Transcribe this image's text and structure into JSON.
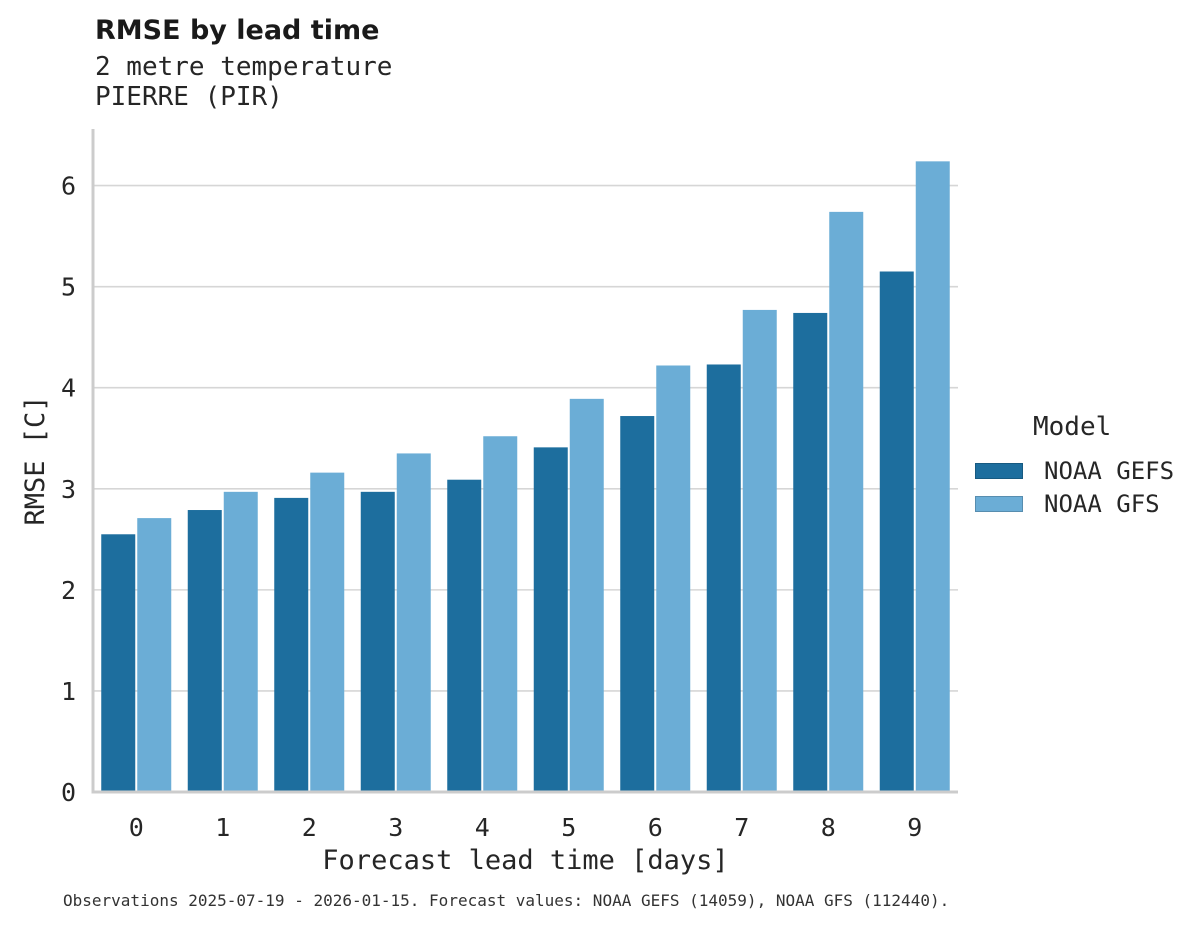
{
  "header": {
    "title": "RMSE by lead time",
    "subtitle_line1": "2 metre temperature",
    "subtitle_line2": "PIERRE (PIR)"
  },
  "caption": "Observations 2025-07-19 - 2026-01-15. Forecast values: NOAA GEFS (14059), NOAA GFS (112440).",
  "colors": {
    "gefs_blue": "#1d6e9e",
    "gfs_blue": "#6badd6",
    "gridline": "#d6d6d6",
    "spine": "#cccccc",
    "text": "#262626"
  },
  "chart_data": {
    "type": "bar",
    "title": "RMSE by lead time",
    "subtitle": [
      "2 metre temperature",
      "PIERRE (PIR)"
    ],
    "categories": [
      "0",
      "1",
      "2",
      "3",
      "4",
      "5",
      "6",
      "7",
      "8",
      "9"
    ],
    "series": [
      {
        "name": "NOAA GEFS",
        "color": "#1d6e9e",
        "values": [
          2.55,
          2.79,
          2.91,
          2.97,
          3.09,
          3.41,
          3.72,
          4.23,
          4.74,
          5.15
        ]
      },
      {
        "name": "NOAA GFS",
        "color": "#6badd6",
        "values": [
          2.71,
          2.97,
          3.16,
          3.35,
          3.52,
          3.89,
          4.22,
          4.77,
          5.74,
          6.24
        ]
      }
    ],
    "xlabel": "Forecast lead time [days]",
    "ylabel": "RMSE [C]",
    "ylim": [
      0,
      6.56
    ],
    "yticks": [
      0,
      1,
      2,
      3,
      4,
      5,
      6
    ],
    "grid": true,
    "legend_title": "Model",
    "legend_position": "right",
    "caption": "Observations 2025-07-19 - 2026-01-15. Forecast values: NOAA GEFS (14059), NOAA GFS (112440)."
  }
}
